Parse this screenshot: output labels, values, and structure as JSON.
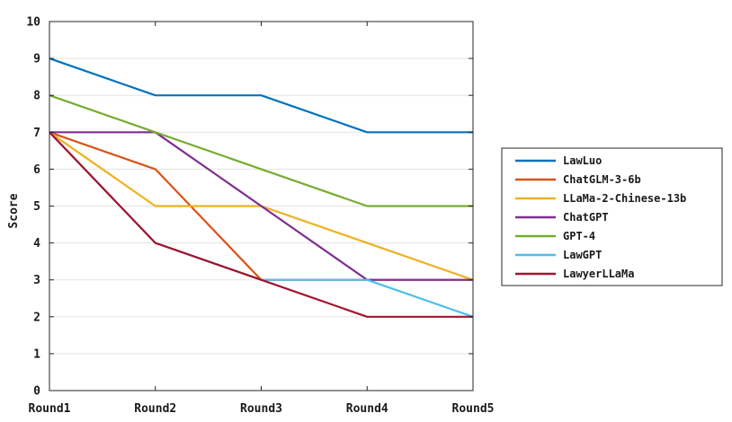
{
  "chart_data": {
    "type": "line",
    "title": "",
    "xlabel": "",
    "ylabel": "Score",
    "categories": [
      "Round1",
      "Round2",
      "Round3",
      "Round4",
      "Round5"
    ],
    "ylim": [
      0,
      10
    ],
    "yticks": [
      0,
      1,
      2,
      3,
      4,
      5,
      6,
      7,
      8,
      9,
      10
    ],
    "grid": "horizontal",
    "legend_position": "right",
    "series": [
      {
        "name": "LawLuo",
        "color": "#0072bd",
        "values": [
          9,
          8,
          8,
          7,
          7
        ]
      },
      {
        "name": "ChatGLM-3-6b",
        "color": "#d95319",
        "values": [
          7,
          6,
          3,
          3,
          3
        ]
      },
      {
        "name": "LLaMa-2-Chinese-13b",
        "color": "#edb120",
        "values": [
          7,
          5,
          5,
          4,
          3
        ]
      },
      {
        "name": "ChatGPT",
        "color": "#7e2f8e",
        "values": [
          7,
          7,
          5,
          3,
          3
        ]
      },
      {
        "name": "GPT-4",
        "color": "#77ac30",
        "values": [
          8,
          7,
          6,
          5,
          5
        ]
      },
      {
        "name": "LawGPT",
        "color": "#4dbeee",
        "values": [
          7,
          4,
          3,
          3,
          2
        ]
      },
      {
        "name": "LawyerLLaMa",
        "color": "#a2142f",
        "values": [
          7,
          4,
          3,
          2,
          2
        ]
      }
    ]
  }
}
